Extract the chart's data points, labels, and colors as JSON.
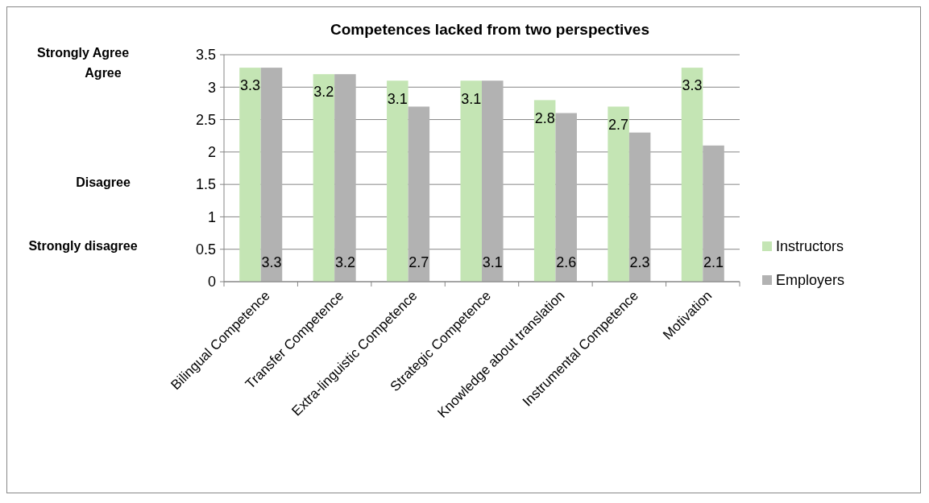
{
  "chart_data": {
    "type": "bar",
    "title": "Competences lacked from two perspectives",
    "categories": [
      "Bilingual Competence",
      "Transfer Competence",
      "Extra-linguistic Competence",
      "Strategic Competence",
      "Knowledge about translation",
      "Instrumental Competence",
      "Motivation"
    ],
    "series": [
      {
        "name": "Instructors",
        "color": "#c4e5b4",
        "values": [
          3.3,
          3.2,
          3.1,
          3.1,
          2.8,
          2.7,
          3.3
        ]
      },
      {
        "name": "Employers",
        "color": "#b2b2b2",
        "values": [
          3.3,
          3.2,
          2.7,
          3.1,
          2.6,
          2.3,
          2.1
        ]
      }
    ],
    "ylim": [
      0,
      3.5
    ],
    "yticks": [
      0,
      0.5,
      1,
      1.5,
      2,
      2.5,
      3,
      3.5
    ],
    "grid": "y",
    "legend": "right",
    "data_labels": true,
    "annotations": [
      "Strongly Agree",
      "Agree",
      "Disagree",
      "Strongly disagree"
    ]
  }
}
